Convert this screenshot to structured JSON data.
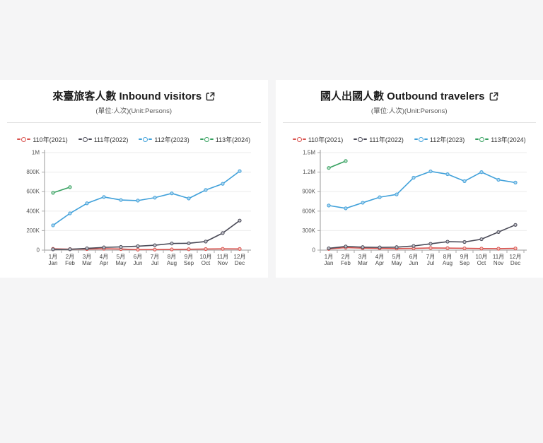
{
  "page_background": "#f5f5f6",
  "cards": [
    {
      "title": "來臺旅客人數 Inbound visitors",
      "subtitle": "(單位:人次)(Unit:Persons)"
    },
    {
      "title": "國人出國人數 Outbound travelers",
      "subtitle": "(單位:人次)(Unit:Persons)"
    }
  ],
  "legend": [
    {
      "label": "110年(2021)",
      "color": "#d9534f"
    },
    {
      "label": "111年(2022)",
      "color": "#4a4a57"
    },
    {
      "label": "112年(2023)",
      "color": "#41a1da"
    },
    {
      "label": "113年(2024)",
      "color": "#35a05f"
    }
  ],
  "chart_data": [
    {
      "type": "line",
      "title": "來臺旅客人數 Inbound visitors",
      "subtitle": "(單位:人次)(Unit:Persons)",
      "xlabel": "",
      "ylabel": "",
      "grid": true,
      "legend_position": "top",
      "ylim": [
        0,
        1000000
      ],
      "yticks": [
        {
          "value": 0,
          "label": "0"
        },
        {
          "value": 200000,
          "label": "200K"
        },
        {
          "value": 400000,
          "label": "400K"
        },
        {
          "value": 600000,
          "label": "600K"
        },
        {
          "value": 800000,
          "label": "800K"
        },
        {
          "value": 1000000,
          "label": "1M"
        }
      ],
      "categories_zh": [
        "1月",
        "2月",
        "3月",
        "4月",
        "5月",
        "6月",
        "7月",
        "8月",
        "9月",
        "10月",
        "11月",
        "12月"
      ],
      "categories_en": [
        "Jan",
        "Feb",
        "Mar",
        "Apr",
        "May",
        "Jun",
        "Jul",
        "Aug",
        "Sep",
        "Oct",
        "Nov",
        "Dec"
      ],
      "series": [
        {
          "name": "110年(2021)",
          "color": "#d9534f",
          "marker_fill": "#f4c1bb",
          "values": [
            13000,
            10000,
            11000,
            14000,
            11000,
            5000,
            6000,
            7000,
            9000,
            11000,
            13000,
            12000
          ]
        },
        {
          "name": "111年(2022)",
          "color": "#4a4a57",
          "marker_fill": "#c0c0c8",
          "values": [
            8000,
            9000,
            18000,
            28000,
            33000,
            40000,
            50000,
            68000,
            70000,
            88000,
            175000,
            303000
          ]
        },
        {
          "name": "112年(2023)",
          "color": "#41a1da",
          "marker_fill": "#aed6ef",
          "values": [
            254000,
            377000,
            480000,
            545000,
            514000,
            508000,
            538000,
            582000,
            530000,
            617000,
            680000,
            810000
          ]
        },
        {
          "name": "113年(2024)",
          "color": "#35a05f",
          "marker_fill": "#b7dec6",
          "values": [
            588000,
            646000
          ]
        }
      ]
    },
    {
      "type": "line",
      "title": "國人出國人數 Outbound travelers",
      "subtitle": "(單位:人次)(Unit:Persons)",
      "xlabel": "",
      "ylabel": "",
      "grid": true,
      "legend_position": "top",
      "ylim": [
        0,
        1500000
      ],
      "yticks": [
        {
          "value": 0,
          "label": "0"
        },
        {
          "value": 300000,
          "label": "300K"
        },
        {
          "value": 600000,
          "label": "600K"
        },
        {
          "value": 900000,
          "label": "900K"
        },
        {
          "value": 1200000,
          "label": "1.2M"
        },
        {
          "value": 1500000,
          "label": "1.5M"
        }
      ],
      "categories_zh": [
        "1月",
        "2月",
        "3月",
        "4月",
        "5月",
        "6月",
        "7月",
        "8月",
        "9月",
        "10月",
        "11月",
        "12月"
      ],
      "categories_en": [
        "Jan",
        "Feb",
        "Mar",
        "Apr",
        "May",
        "Jun",
        "Jul",
        "Aug",
        "Sep",
        "Oct",
        "Nov",
        "Dec"
      ],
      "series": [
        {
          "name": "110年(2021)",
          "color": "#d9534f",
          "marker_fill": "#f4c1bb",
          "values": [
            18000,
            38000,
            30000,
            27000,
            24000,
            27000,
            33000,
            31000,
            28000,
            24000,
            22000,
            26000
          ]
        },
        {
          "name": "111年(2022)",
          "color": "#4a4a57",
          "marker_fill": "#c0c0c8",
          "values": [
            28000,
            56000,
            46000,
            42000,
            46000,
            64000,
            97000,
            130000,
            125000,
            168000,
            278000,
            388000
          ]
        },
        {
          "name": "112年(2023)",
          "color": "#41a1da",
          "marker_fill": "#aed6ef",
          "values": [
            686000,
            643000,
            729000,
            814000,
            857000,
            1114000,
            1211000,
            1168000,
            1061000,
            1200000,
            1082000,
            1039000
          ]
        },
        {
          "name": "113年(2024)",
          "color": "#35a05f",
          "marker_fill": "#b7dec6",
          "values": [
            1264000,
            1371000
          ]
        }
      ]
    }
  ]
}
